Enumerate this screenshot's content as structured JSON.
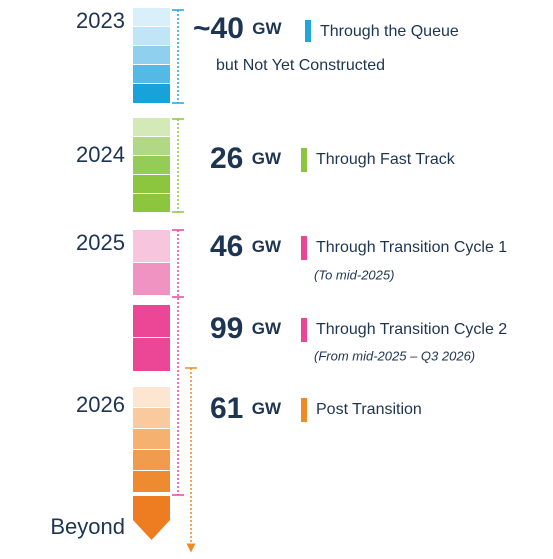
{
  "years": [
    "2023",
    "2024",
    "2025",
    "2026",
    "Beyond"
  ],
  "rows": [
    {
      "amount": "~40",
      "unit": "GW",
      "label": "Through the Queue",
      "label2": "but Not Yet Constructed"
    },
    {
      "amount": "26",
      "unit": "GW",
      "label": "Through Fast Track"
    },
    {
      "amount": "46",
      "unit": "GW",
      "label": "Through Transition Cycle 1",
      "note": "(To mid-2025)"
    },
    {
      "amount": "99",
      "unit": "GW",
      "label": "Through Transition Cycle 2",
      "note": "(From mid-2025 – Q3 2026)"
    },
    {
      "amount": "61",
      "unit": "GW",
      "label": "Post Transition"
    }
  ]
}
